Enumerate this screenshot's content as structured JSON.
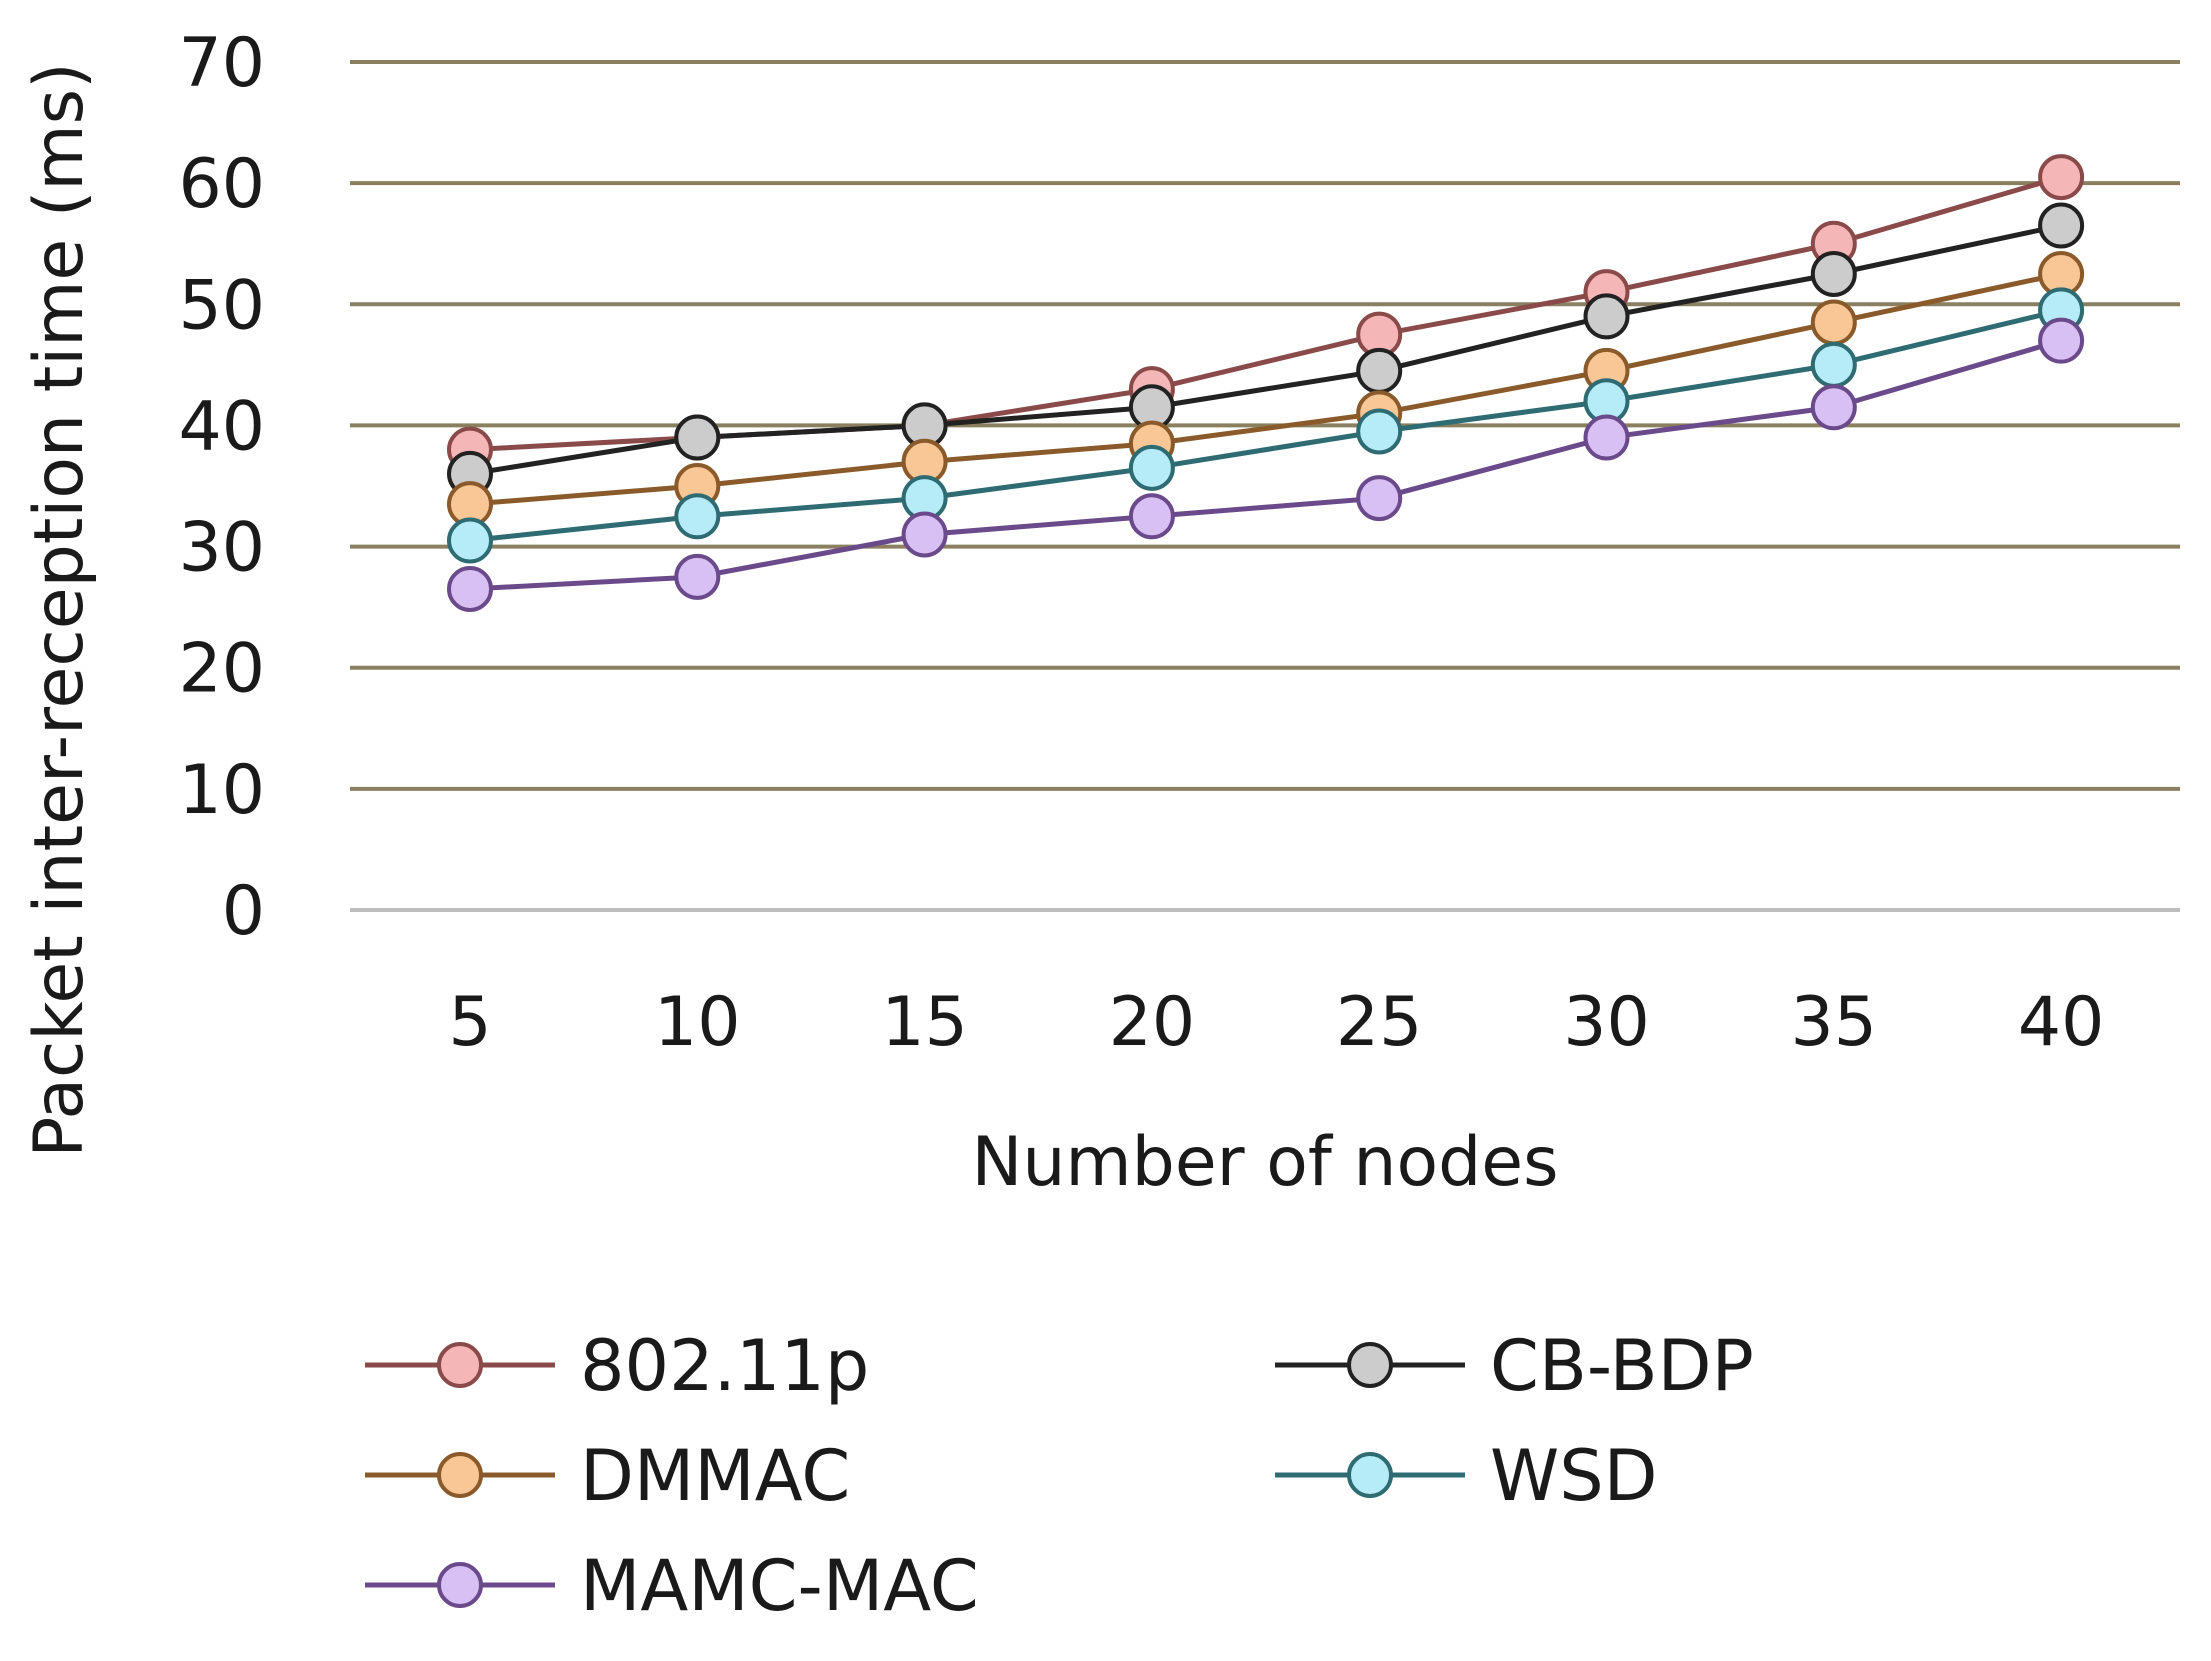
{
  "chart_data": {
    "type": "line",
    "title": "",
    "xlabel": "Number of nodes",
    "ylabel": "Packet inter-reception time (ms)",
    "categories": [
      "5",
      "10",
      "15",
      "20",
      "25",
      "30",
      "35",
      "40"
    ],
    "ylim": [
      0,
      70
    ],
    "yticks": [
      "0",
      "10",
      "20",
      "30",
      "40",
      "50",
      "60",
      "70"
    ],
    "grid": true,
    "legend_position": "bottom",
    "series": [
      {
        "name": "802.11p",
        "values": [
          38,
          39,
          40,
          43,
          47.5,
          51,
          55,
          60.5
        ],
        "line_color": "#8b4a4a",
        "marker_color": "#f4b6b6"
      },
      {
        "name": "CB-BDP",
        "values": [
          36,
          39,
          40,
          41.5,
          44.5,
          49,
          52.5,
          56.5
        ],
        "line_color": "#222222",
        "marker_color": "#cccccc"
      },
      {
        "name": "DMMAC",
        "values": [
          33.5,
          35,
          37,
          38.5,
          41,
          44.5,
          48.5,
          52.5
        ],
        "line_color": "#8b5a2b",
        "marker_color": "#f9c796"
      },
      {
        "name": "WSD",
        "values": [
          30.5,
          32.5,
          34,
          36.5,
          39.5,
          42,
          45,
          49.5
        ],
        "line_color": "#2e6b72",
        "marker_color": "#b6ecf7"
      },
      {
        "name": "MAMC-MAC",
        "values": [
          26.5,
          27.5,
          31,
          32.5,
          34,
          39,
          41.5,
          47
        ],
        "line_color": "#6b4a8b",
        "marker_color": "#d8c0f4"
      }
    ],
    "gridline_color": "#8a8060",
    "zero_line_color": "#bdbdbd"
  }
}
